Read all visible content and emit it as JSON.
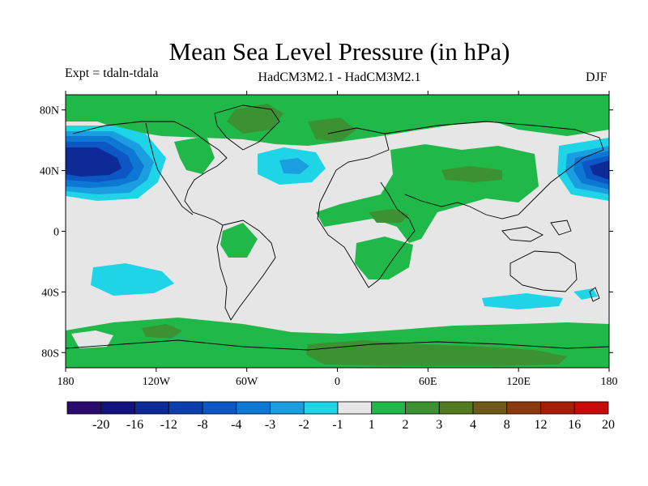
{
  "title": "Mean Sea Level Pressure (in hPa)",
  "experiment": "Expt = tdaln-tdala",
  "models": "HadCM3M2.1 - HadCM3M2.1",
  "season": "DJF",
  "map": {
    "lon_range": [
      -180,
      180
    ],
    "lat_range": [
      -90,
      90
    ],
    "y_ticks": [
      "80N",
      "40N",
      "0",
      "40S",
      "80S"
    ],
    "x_ticks": [
      "180",
      "120W",
      "60W",
      "0",
      "60E",
      "120E",
      "180"
    ]
  },
  "colorbar": {
    "labels": [
      "-20",
      "-16",
      "-12",
      "-8",
      "-4",
      "-3",
      "-2",
      "-1",
      "1",
      "2",
      "3",
      "4",
      "8",
      "12",
      "16",
      "20"
    ],
    "colors": [
      "#2a0a6e",
      "#12127e",
      "#0e2a96",
      "#0b3fae",
      "#0d57c4",
      "#0d78d4",
      "#1b9ee0",
      "#1ed4e6",
      "#e6e6e6",
      "#21b84a",
      "#3c9232",
      "#537a1e",
      "#6e5a16",
      "#8a3a0e",
      "#a61e0a",
      "#c80a0a"
    ]
  }
}
